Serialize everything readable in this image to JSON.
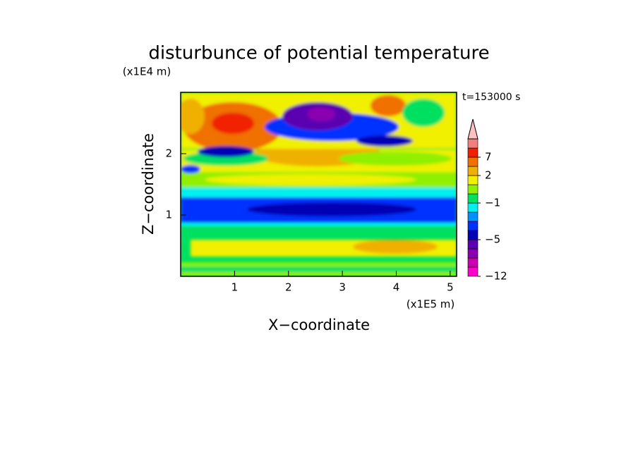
{
  "chart_data": {
    "type": "contourf",
    "title": "disturbunce of potential temperature",
    "x_label": "X−coordinate",
    "y_label": "Z−coordinate",
    "x_unit": "(x1E5 m)",
    "y_unit": "(x1E4 m)",
    "annotation": "t=153000 s",
    "xlim": [
      0,
      5.12
    ],
    "xticks": [
      1,
      2,
      3,
      4,
      5
    ],
    "ylim": [
      0,
      3
    ],
    "yticks": [
      1,
      2
    ],
    "colorbar": {
      "levels": [
        -12,
        -10,
        -8,
        -6,
        -5,
        -4,
        -3,
        -2,
        -1,
        0,
        1,
        2,
        4,
        7,
        9,
        11
      ],
      "colors": [
        "#ff00cc",
        "#cc00b0",
        "#8a00b0",
        "#5a00b0",
        "#0000b4",
        "#0030ff",
        "#0090ff",
        "#00f0f0",
        "#00e060",
        "#90f000",
        "#f0f000",
        "#f0b000",
        "#f07000",
        "#f02000",
        "#f08080"
      ],
      "ticks": [
        {
          "value": -12,
          "label": "−12"
        },
        {
          "value": -5,
          "label": "−5"
        },
        {
          "value": -1,
          "label": "−1"
        },
        2,
        7
      ],
      "extend_color": "#ffc0c0"
    }
  }
}
